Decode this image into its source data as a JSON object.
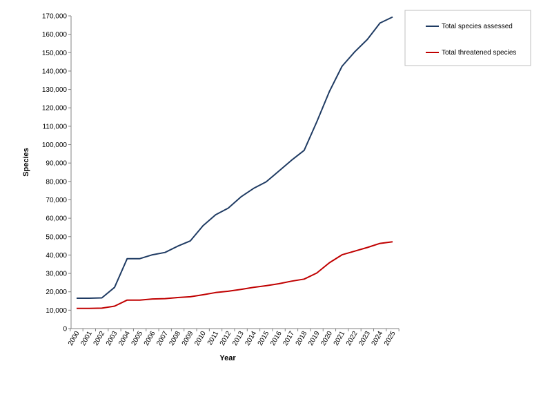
{
  "chart_data": {
    "type": "line",
    "title": "",
    "xlabel": "Year",
    "ylabel": "Species",
    "x": [
      "2000",
      "2001",
      "2002",
      "2003",
      "2004",
      "2005",
      "2006",
      "2007",
      "2008",
      "2009",
      "2010",
      "2011",
      "2012",
      "2013",
      "2014",
      "2015",
      "2016",
      "2017",
      "2018",
      "2019",
      "2020",
      "2021",
      "2022",
      "2023",
      "2024",
      "2025"
    ],
    "ylim": [
      0,
      170000
    ],
    "yticks": [
      0,
      10000,
      20000,
      30000,
      40000,
      50000,
      60000,
      70000,
      80000,
      90000,
      100000,
      110000,
      120000,
      130000,
      140000,
      150000,
      160000,
      170000
    ],
    "ytick_labels": [
      "0",
      "10,000",
      "20,000",
      "30,000",
      "40,000",
      "50,000",
      "60,000",
      "70,000",
      "80,000",
      "90,000",
      "100,000",
      "110,000",
      "120,000",
      "130,000",
      "140,000",
      "150,000",
      "160,000",
      "170,000"
    ],
    "grid": false,
    "legend_position": "top-right",
    "series": [
      {
        "name": "Total species assessed",
        "color": "#1f3b63",
        "values": [
          16500,
          16500,
          16700,
          22400,
          38000,
          38000,
          40100,
          41400,
          44800,
          47700,
          55900,
          61900,
          65500,
          71600,
          76200,
          79800,
          85600,
          91500,
          96900,
          112400,
          128900,
          142600,
          150400,
          157200,
          166100,
          169400
        ]
      },
      {
        "name": "Total threatened species",
        "color": "#c00000",
        "values": [
          11000,
          11000,
          11100,
          12200,
          15500,
          15500,
          16100,
          16300,
          16900,
          17300,
          18400,
          19600,
          20300,
          21300,
          22400,
          23300,
          24400,
          25800,
          26900,
          30200,
          35800,
          40100,
          42100,
          44100,
          46300,
          47200
        ]
      }
    ]
  }
}
